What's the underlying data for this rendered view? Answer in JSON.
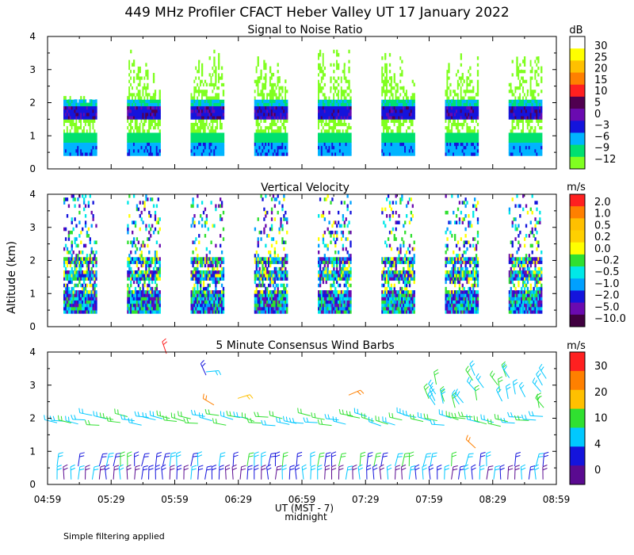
{
  "title": "449 MHz Profiler CFACT Heber Valley UT 17 January 2022",
  "y_axis_label": "Altitude (km)",
  "x_axis_label": "UT (MST - 7)",
  "midnight_label": "midnight",
  "footnote": "Simple filtering applied",
  "time_ticks": [
    "04:59",
    "05:29",
    "05:59",
    "06:29",
    "06:59",
    "07:29",
    "07:59",
    "08:29",
    "08:59"
  ],
  "chart_data": [
    {
      "type": "heatmap",
      "title": "Signal to Noise Ratio",
      "unit": "dB",
      "ylabel": "Altitude (km)",
      "ylim": [
        0,
        4
      ],
      "y_ticks": [
        "0",
        "1",
        "2",
        "3",
        "4"
      ],
      "scale_labels": [
        "30",
        "25",
        "20",
        "15",
        "10",
        "5",
        "0",
        "−3",
        "−6",
        "−9",
        "−12"
      ],
      "scale_colors": [
        "#ffffff",
        "#ffff00",
        "#ffc000",
        "#ff8000",
        "#ff2020",
        "#500050",
        "#6a0ab0",
        "#1414dc",
        "#00b4ff",
        "#00e070",
        "#80ff20"
      ],
      "time_blocks": [
        "04:59–05:29",
        "05:29–05:59",
        "05:59–06:29",
        "06:29–06:59",
        "06:59–07:29",
        "07:29–07:59",
        "07:59–08:29",
        "08:29–08:59"
      ]
    },
    {
      "type": "heatmap",
      "title": "Vertical Velocity",
      "unit": "m/s",
      "ylabel": "Altitude (km)",
      "ylim": [
        0,
        4
      ],
      "y_ticks": [
        "0",
        "1",
        "2",
        "3",
        "4"
      ],
      "scale_labels": [
        "2.0",
        "1.0",
        "0.5",
        "0.2",
        "0.0",
        "−0.2",
        "−0.5",
        "−1.0",
        "−2.0",
        "−5.0",
        "−10.0"
      ],
      "scale_colors": [
        "#ff2020",
        "#ff8000",
        "#ffc000",
        "#ffd000",
        "#ffff00",
        "#30e030",
        "#00e8e8",
        "#00a0ff",
        "#1414dc",
        "#6a0ab0",
        "#400040"
      ]
    },
    {
      "type": "scatter",
      "title": "5 Minute Consensus Wind Barbs",
      "unit": "m/s",
      "ylabel": "Altitude (km)",
      "ylim": [
        0,
        4
      ],
      "y_ticks": [
        "0",
        "1",
        "2",
        "3",
        "4"
      ],
      "scale_labels": [
        "30",
        "20",
        "10",
        "4",
        "0"
      ],
      "scale_colors": [
        "#ff2020",
        "#ff8000",
        "#ffc000",
        "#30e030",
        "#00c8ff",
        "#1414dc",
        "#5a0a90"
      ]
    }
  ]
}
